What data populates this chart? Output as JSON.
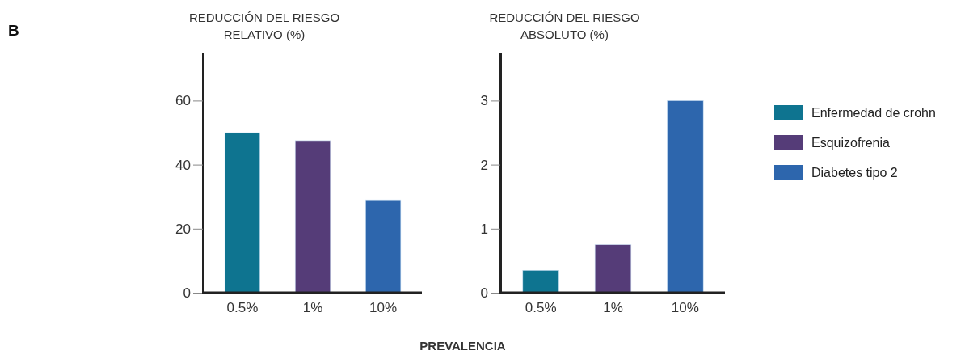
{
  "chart_data": [
    {
      "type": "bar",
      "title": "REDUCCIÓN DEL RIESGO\nRELATIVO (%)",
      "xlabel": "PREVALENCIA",
      "annotations": [
        "B"
      ],
      "categories": [
        "0.5%",
        "1%",
        "10%"
      ],
      "stacked": true,
      "series": [
        {
          "color": "#0e7490",
          "values": [
            50,
            null,
            null
          ]
        },
        {
          "color": "#553c78",
          "values": [
            null,
            47.5,
            null
          ]
        },
        {
          "color": "#2d66ad",
          "values": [
            null,
            null,
            29
          ]
        }
      ],
      "ylim": [
        0,
        75
      ],
      "yticks": [
        0,
        20,
        40,
        60
      ],
      "grid": false
    },
    {
      "type": "bar",
      "title": "REDUCCIÓN DEL RIESGO\nABSOLUTO (%)",
      "categories": [
        "0.5%",
        "1%",
        "10%"
      ],
      "stacked": true,
      "series": [
        {
          "name": "Enfermedad de crohn",
          "color": "#0e7490",
          "values": [
            0.35,
            null,
            null
          ]
        },
        {
          "name": "Esquizofrenia",
          "color": "#553c78",
          "values": [
            null,
            0.75,
            null
          ]
        },
        {
          "name": "Diabetes tipo 2",
          "color": "#2d66ad",
          "values": [
            null,
            null,
            3
          ]
        }
      ],
      "ylim": [
        0,
        3.75
      ],
      "yticks": [
        0,
        1,
        2,
        3
      ],
      "grid": false,
      "legend": "right"
    }
  ]
}
